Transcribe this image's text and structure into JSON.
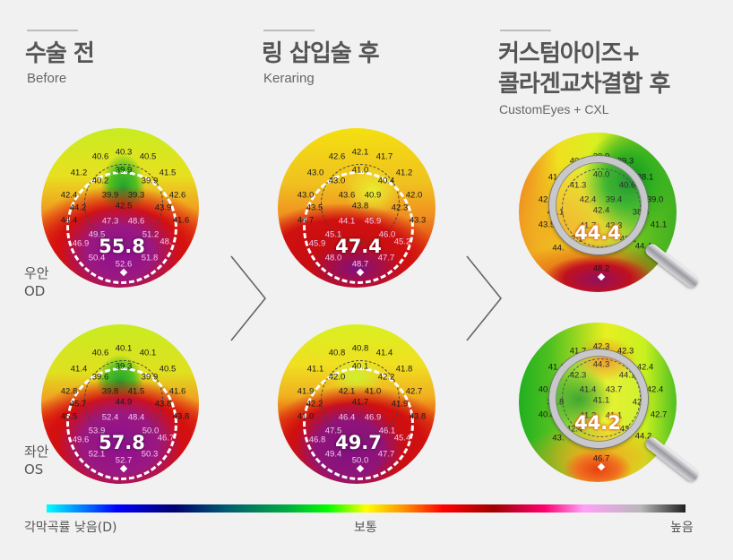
{
  "columns": [
    {
      "title_lines": [
        "수술 전"
      ],
      "subtitle": "Before"
    },
    {
      "title_lines": [
        "링 삽입술 후"
      ],
      "subtitle": "Keraring"
    },
    {
      "title_lines": [
        "커스텀아이즈+",
        "콜라겐교차결합 후"
      ],
      "subtitle": "CustomEyes + CXL"
    }
  ],
  "rows": [
    {
      "label": "우안",
      "code": "OD"
    },
    {
      "label": "좌안",
      "code": "OS"
    }
  ],
  "maps": {
    "od_before": {
      "center_value": "55.8",
      "values": [
        "40.3",
        "40.6",
        "40.5",
        "41.2",
        "41.5",
        "39.9",
        "40.2",
        "39.9",
        "42.4",
        "42.6",
        "39.9",
        "39.3",
        "44.2",
        "43.9",
        "42.5",
        "44.4",
        "41.6",
        "47.3",
        "48.6",
        "49.5",
        "51.2",
        "46.9",
        "48.",
        "50.4",
        "52.6",
        "51.8"
      ]
    },
    "od_keraring": {
      "center_value": "47.4",
      "values": [
        "42.1",
        "42.6",
        "41.7",
        "43.0",
        "41.2",
        "41.0",
        "43.0",
        "40.4",
        "43.0",
        "42.0",
        "43.6",
        "40.9",
        "43.5",
        "42.3",
        "43.8",
        "44.7",
        "43.3",
        "44.1",
        "45.9",
        "45.1",
        "46.0",
        "45.9",
        "45.2",
        "48.0",
        "48.7",
        "47.7"
      ]
    },
    "od_customeyes": {
      "center_value": "44.4",
      "values": [
        "39.9",
        "40.9",
        "39.3",
        "41.5",
        "38.1",
        "40.0",
        "41.3",
        "40.6",
        "42.7",
        "39.0",
        "42.4",
        "39.4",
        "42.1",
        "38.3",
        "42.4",
        "43.5",
        "41.1",
        "41.7",
        "43.3",
        "42.1",
        "43.2",
        "44.",
        "44.4",
        "",
        "48.2",
        ""
      ]
    },
    "os_before": {
      "center_value": "57.8",
      "values": [
        "40.1",
        "40.6",
        "40.1",
        "41.4",
        "40.5",
        "39.3",
        "39.6",
        "39.9",
        "42.8",
        "41.6",
        "39.8",
        "41.5",
        "45.7",
        "43.8",
        "44.9",
        "45.5",
        "43.8",
        "52.4",
        "48.4",
        "53.9",
        "50.0",
        "49.6",
        "46.7",
        "52.1",
        "52.7",
        "50.3"
      ]
    },
    "os_keraring": {
      "center_value": "49.7",
      "values": [
        "40.8",
        "40.8",
        "41.4",
        "41.1",
        "41.8",
        "40.1",
        "42.0",
        "42.2",
        "41.9",
        "42.7",
        "42.1",
        "41.0",
        "42.2",
        "41.9",
        "41.7",
        "41.0",
        "43.8",
        "46.4",
        "46.9",
        "47.5",
        "46.1",
        "46.8",
        "45.4",
        "49.4",
        "50.0",
        "47.7"
      ]
    },
    "os_customeyes": {
      "center_value": "44.2",
      "values": [
        "42.3",
        "41.7",
        "42.3",
        "41.1",
        "42.4",
        "44.3",
        "42.3",
        "44.1",
        "40.7",
        "42.4",
        "41.4",
        "43.7",
        "39.8",
        "42.7",
        "41.1",
        "40.8",
        "42.7",
        "41.3",
        "41.1",
        "42.4",
        "43.1",
        "43.",
        "44.2",
        "",
        "46.7",
        ""
      ]
    }
  },
  "colorbar": {
    "low_label": "각막곡률 낮음(D)",
    "mid_label": "보통",
    "high_label": "높음"
  }
}
